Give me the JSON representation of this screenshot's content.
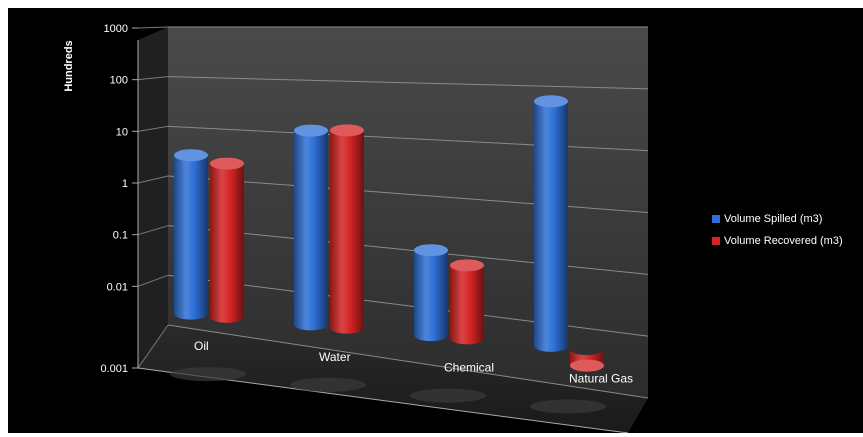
{
  "chart_data": {
    "type": "bar",
    "subtype": "3d-cylinder",
    "title": "",
    "xlabel": "",
    "ylabel": "Hundreds",
    "yscale": "log",
    "ylim": [
      0.001,
      1000
    ],
    "yticks": [
      "0.001",
      "0.01",
      "0.1",
      "1",
      "10",
      "100",
      "1000"
    ],
    "categories": [
      "Oil",
      "Water",
      "Chemical",
      "Natural Gas"
    ],
    "series": [
      {
        "name": "Volume Spilled (m3)",
        "color": "#2e6fd6",
        "values": [
          12,
          40,
          0.18,
          130
        ]
      },
      {
        "name": "Volume Recovered (m3)",
        "color": "#d42424",
        "values": [
          8,
          40,
          0.1,
          0.002
        ]
      }
    ],
    "grid": true,
    "legend": "right",
    "background": "#000000"
  }
}
